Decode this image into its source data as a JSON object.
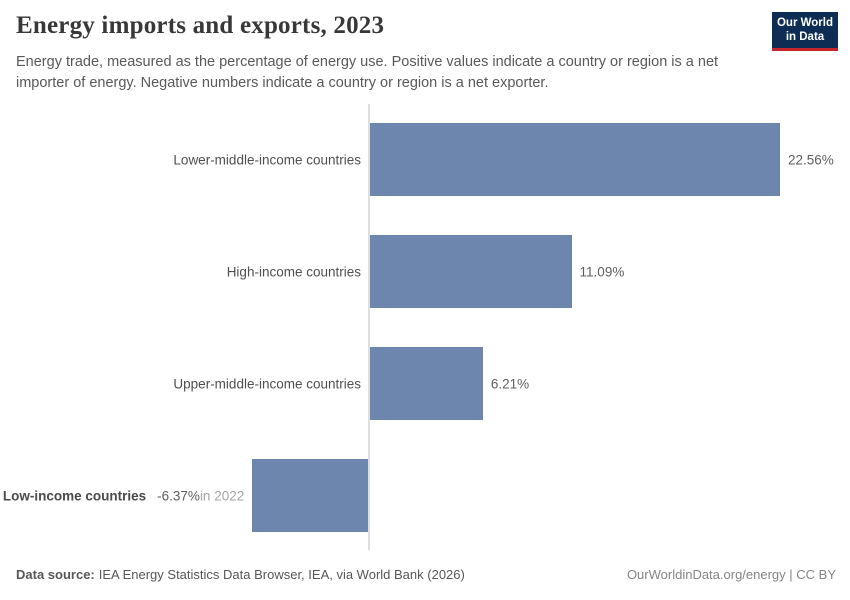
{
  "header": {
    "title": "Energy imports and exports, 2023",
    "subtitle": "Energy trade, measured as the percentage of energy use. Positive values indicate a country or region is a net importer of energy. Negative numbers indicate a country or region is a net exporter.",
    "logo": {
      "line1": "Our World",
      "line2": "in Data",
      "bg_color": "#0d2d54",
      "accent_color": "#c7252d"
    }
  },
  "chart_data": {
    "type": "bar",
    "orientation": "horizontal",
    "title": "Energy imports and exports, 2023",
    "categories": [
      "Lower-middle-income countries",
      "High-income countries",
      "Upper-middle-income countries",
      "Low-income countries"
    ],
    "values": [
      22.56,
      11.09,
      6.21,
      -6.37
    ],
    "value_labels": [
      "22.56%",
      "11.09%",
      "6.21%",
      "-6.37%"
    ],
    "value_suffixes": [
      "",
      "",
      "",
      "in 2022"
    ],
    "unit": "%",
    "xlim": [
      -6.37,
      22.56
    ],
    "grid": false,
    "legend": "none",
    "bar_color": "#6d86ad",
    "axis_line_color": "#dedede"
  },
  "footer": {
    "data_source_label": "Data source:",
    "data_source_text": "IEA Energy Statistics Data Browser, IEA, via World Bank (2026)",
    "attribution": "OurWorldinData.org/energy | CC BY"
  }
}
